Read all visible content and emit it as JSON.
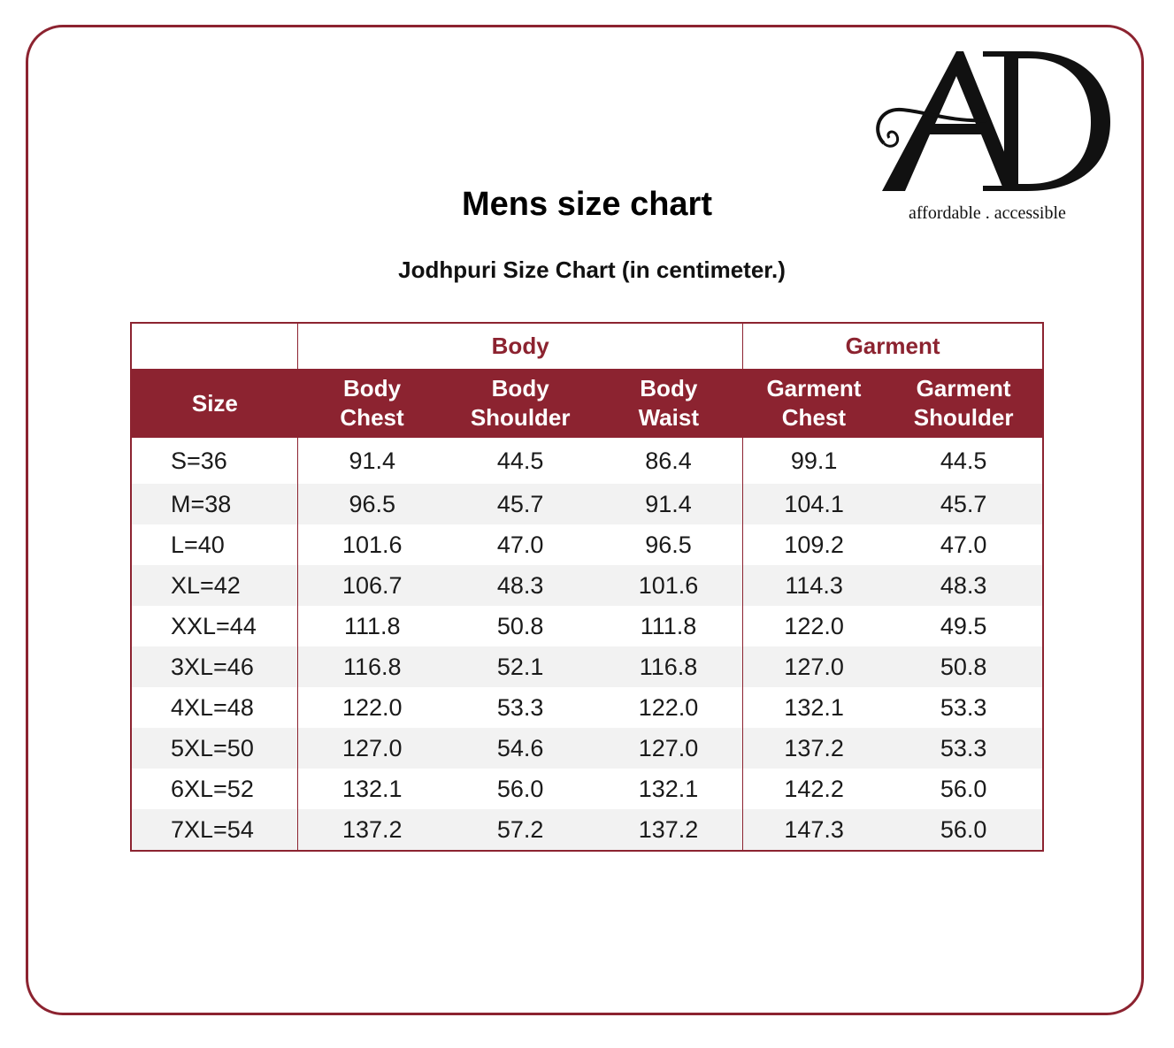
{
  "logo": {
    "letters": "AD",
    "tagline": "affordable . accessible"
  },
  "title": "Mens size chart",
  "subtitle": "Jodhpuri Size Chart (in centimeter.)",
  "table": {
    "groups": {
      "body": "Body",
      "garment": "Garment"
    },
    "headers": [
      {
        "l1": "Size",
        "l2": ""
      },
      {
        "l1": "Body",
        "l2": "Chest"
      },
      {
        "l1": "Body",
        "l2": "Shoulder"
      },
      {
        "l1": "Body",
        "l2": "Waist"
      },
      {
        "l1": "Garment",
        "l2": "Chest"
      },
      {
        "l1": "Garment",
        "l2": "Shoulder"
      }
    ],
    "rows": [
      [
        "S=36",
        "91.4",
        "44.5",
        "86.4",
        "99.1",
        "44.5"
      ],
      [
        "M=38",
        "96.5",
        "45.7",
        "91.4",
        "104.1",
        "45.7"
      ],
      [
        "L=40",
        "101.6",
        "47.0",
        "96.5",
        "109.2",
        "47.0"
      ],
      [
        "XL=42",
        "106.7",
        "48.3",
        "101.6",
        "114.3",
        "48.3"
      ],
      [
        "XXL=44",
        "111.8",
        "50.8",
        "111.8",
        "122.0",
        "49.5"
      ],
      [
        "3XL=46",
        "116.8",
        "52.1",
        "116.8",
        "127.0",
        "50.8"
      ],
      [
        "4XL=48",
        "122.0",
        "53.3",
        "122.0",
        "132.1",
        "53.3"
      ],
      [
        "5XL=50",
        "127.0",
        "54.6",
        "127.0",
        "137.2",
        "53.3"
      ],
      [
        "6XL=52",
        "132.1",
        "56.0",
        "132.1",
        "142.2",
        "56.0"
      ],
      [
        "7XL=54",
        "137.2",
        "57.2",
        "137.2",
        "147.3",
        "56.0"
      ]
    ]
  },
  "colors": {
    "accent": "#8c2330",
    "stripe": "#f2f2f2"
  }
}
